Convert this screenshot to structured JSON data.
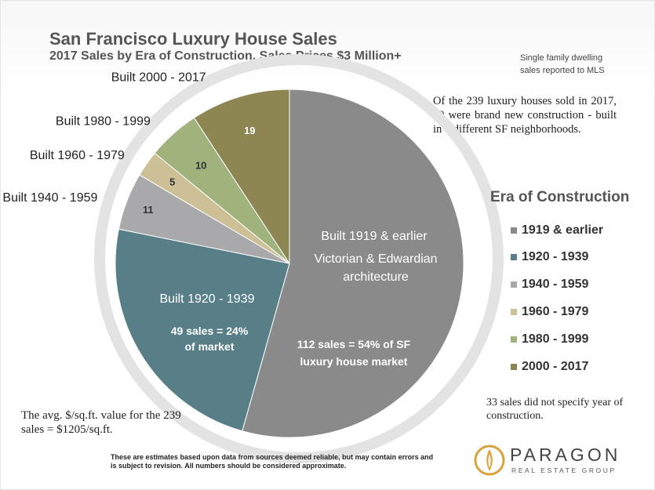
{
  "chart_data": {
    "type": "pie",
    "title": "San Francisco Luxury House Sales",
    "subtitle": "2017 Sales by Era of Construction, Sales Prices $3 Million+",
    "series": [
      {
        "name": "1919 & earlier",
        "value": 112,
        "color": "#8a8a8a",
        "outer_label": "",
        "inner_label": "",
        "note_1": "Built 1919 & earlier",
        "note_2": "Victorian & Edwardian architecture",
        "note_3": "112 sales = 54% of SF luxury house market"
      },
      {
        "name": "1920 - 1939",
        "value": 49,
        "color": "#587f88",
        "outer_label": "",
        "inner_label": "",
        "note_1": "Built 1920 - 1939",
        "note_2": "",
        "note_3": "49 sales = 24% of market"
      },
      {
        "name": "1940 - 1959",
        "value": 11,
        "color": "#a9a9ab",
        "outer_label": "Built 1940 - 1959",
        "inner_label": "11"
      },
      {
        "name": "1960 - 1979",
        "value": 5,
        "color": "#cdbf96",
        "outer_label": "Built 1960 - 1979",
        "inner_label": "5"
      },
      {
        "name": "1980 - 1999",
        "value": 10,
        "color": "#a0b37c",
        "outer_label": "Built 1980 - 1999",
        "inner_label": "10"
      },
      {
        "name": "2000 - 2017",
        "value": 19,
        "color": "#8d8552",
        "outer_label": "Built 2000 - 2017",
        "inner_label": "19"
      }
    ],
    "legend_title": "Era of Construction",
    "legend_position": "right"
  },
  "notes": {
    "mls": "Single family dwelling sales reported to MLS",
    "brand_new": "Of the 239 luxury houses sold in 2017, 10 were brand new construction - built in 8 different SF neighborhoods.",
    "missing": "33 sales did not specify year of construction.",
    "avg_value": "The avg. $/sq.ft. value for the 239 sales = $1205/sq.ft.",
    "disclaimer": "These are estimates based upon data from sources deemed reliable, but may contain errors and is subject to revision. All numbers should be considered approximate."
  },
  "logo": {
    "name": "PARAGON",
    "tagline": "REAL ESTATE GROUP"
  }
}
